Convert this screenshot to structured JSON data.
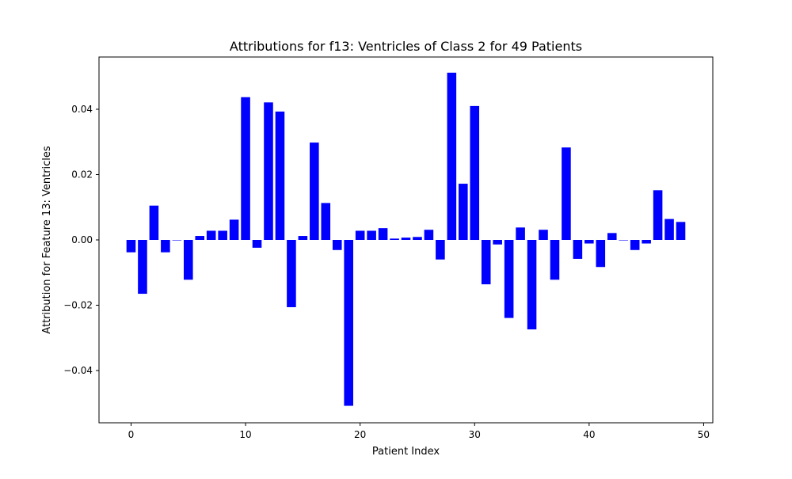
{
  "chart_data": {
    "type": "bar",
    "title": "Attributions for f13: Ventricles of Class 2 for 49 Patients",
    "xlabel": "Patient Index",
    "ylabel": "Attribution for Feature 13: Ventricles",
    "xlim": [
      -2.8,
      50.8
    ],
    "ylim": [
      -0.056,
      0.056
    ],
    "x_ticks": [
      0,
      10,
      20,
      30,
      40,
      50
    ],
    "y_ticks": [
      -0.04,
      -0.02,
      0.0,
      0.02,
      0.04
    ],
    "y_tick_labels": [
      "−0.04",
      "−0.02",
      "0.00",
      "0.02",
      "0.04"
    ],
    "grid": false,
    "bar_color": "#0000ff",
    "x": [
      0,
      1,
      2,
      3,
      4,
      5,
      6,
      7,
      8,
      9,
      10,
      11,
      12,
      13,
      14,
      15,
      16,
      17,
      18,
      19,
      20,
      21,
      22,
      23,
      24,
      25,
      26,
      27,
      28,
      29,
      30,
      31,
      32,
      33,
      34,
      35,
      36,
      37,
      38,
      39,
      40,
      41,
      42,
      43,
      44,
      45,
      46,
      47,
      48
    ],
    "values": [
      -0.0038,
      -0.0165,
      0.0105,
      -0.0038,
      0.0,
      -0.0122,
      0.0012,
      0.0028,
      0.0028,
      0.0062,
      0.0437,
      -0.0024,
      0.0421,
      0.0393,
      -0.0206,
      0.0012,
      0.0298,
      0.0113,
      -0.0031,
      -0.0508,
      0.0028,
      0.0028,
      0.0036,
      0.0004,
      0.0007,
      0.0009,
      0.0031,
      -0.006,
      0.0512,
      0.0172,
      0.041,
      -0.0136,
      -0.0014,
      -0.0239,
      0.0038,
      -0.0274,
      0.0031,
      -0.0122,
      0.0283,
      -0.0058,
      -0.0011,
      -0.0083,
      0.0021,
      0.0,
      -0.0031,
      -0.0011,
      0.0152,
      0.0064,
      0.0055
    ]
  }
}
